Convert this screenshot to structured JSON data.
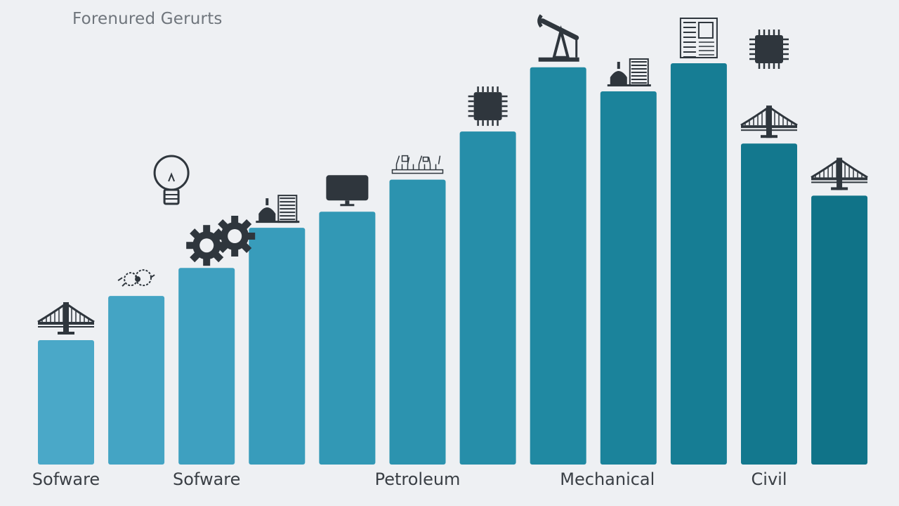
{
  "chart_data": {
    "type": "bar",
    "title": "Forenured Gerurts",
    "xlabel": "",
    "ylabel": "",
    "ylim": [
      0,
      100
    ],
    "grid": false,
    "legend": "none",
    "categories": [
      "",
      "",
      "",
      "",
      "",
      "",
      "",
      "",
      "",
      "",
      "",
      ""
    ],
    "values": [
      31,
      42,
      49,
      59,
      63,
      71,
      83,
      99,
      93,
      100,
      80,
      67
    ],
    "visible_labels": [
      {
        "bar": 0,
        "text": "Sofware"
      },
      {
        "bar": 2,
        "text": "Sofware"
      },
      {
        "bar": 5,
        "text": "Petroleum"
      },
      {
        "bar": 8,
        "text": "Mechanical"
      },
      {
        "bar": 10,
        "text": "Civil"
      }
    ],
    "icons": [
      "bridge-icon",
      "gears-icon",
      "gear-icon",
      "buildings-icon",
      "monitor-icon",
      "circuit-sketch-icon",
      "microchip-icon",
      "oil-pump-icon",
      "buildings-icon",
      "blueprint-icon",
      "bridge-icon",
      "bridge-icon"
    ],
    "extra_icons": [
      "lightbulb-icon",
      "gear-icon",
      "microchip-icon"
    ],
    "colors": [
      "#4aa8c8",
      "#44a4c4",
      "#3ea0c0",
      "#389cbb",
      "#3298b5",
      "#2c93af",
      "#268ea9",
      "#2089a2",
      "#1b839b",
      "#167d94",
      "#13788e",
      "#107388"
    ],
    "icon_color": "#2f363d"
  }
}
